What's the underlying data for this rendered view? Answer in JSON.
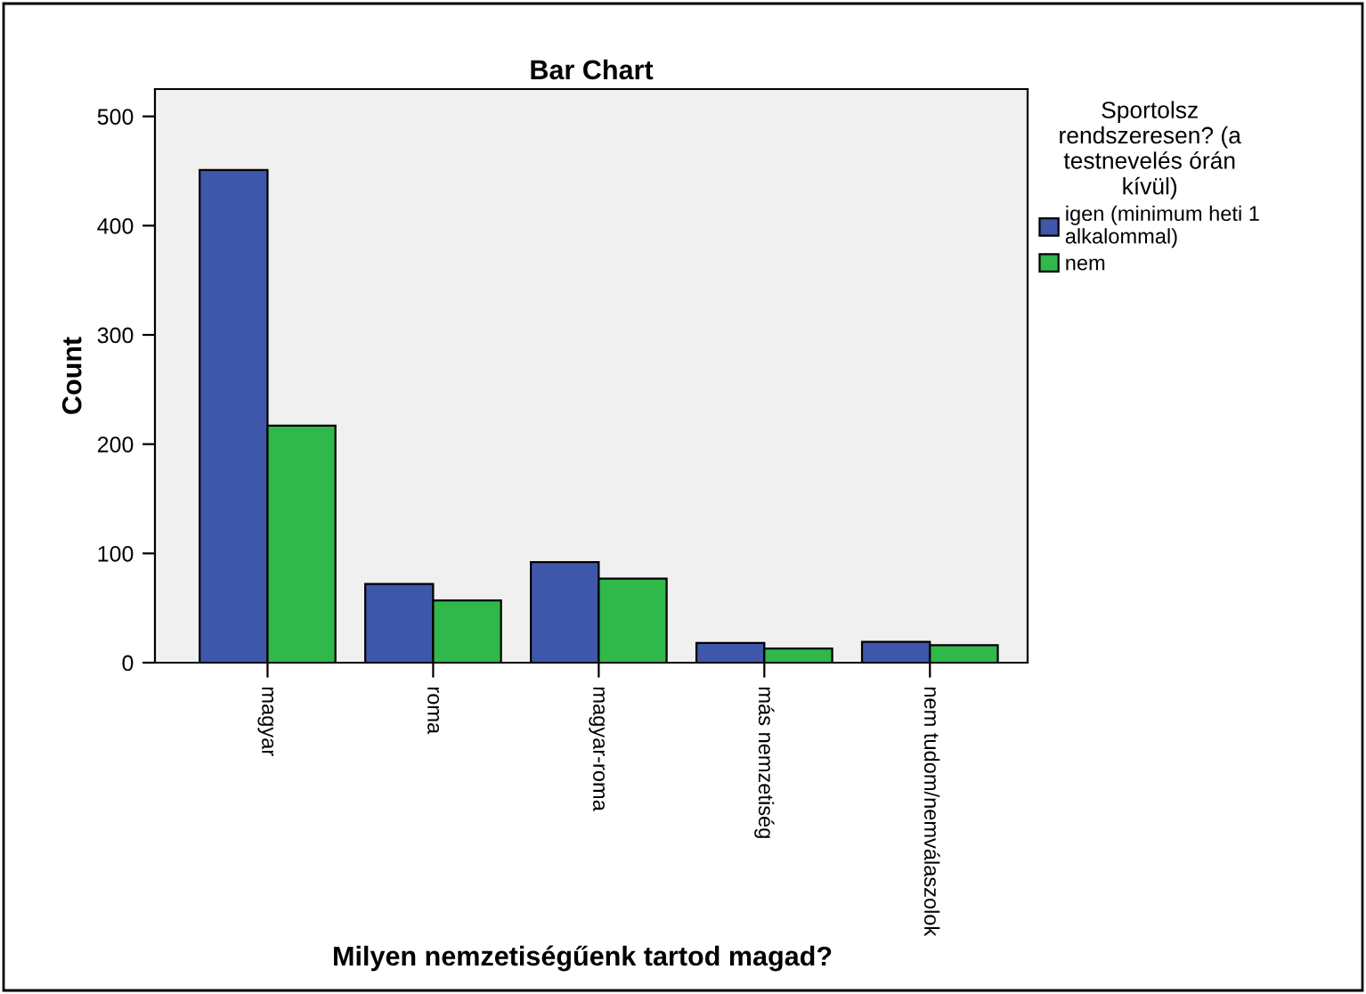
{
  "chart_data": {
    "type": "bar",
    "title": "Bar Chart",
    "xlabel": "Milyen nemzetiségűenk tartod magad?",
    "ylabel": "Count",
    "legend_title": "Sportolsz rendszeresen? (a testnevelés órán kívül)",
    "categories": [
      "magyar",
      "roma",
      "magyar-roma",
      "más nemzetiség",
      "nem tudom/nemválaszolok"
    ],
    "series": [
      {
        "name": "igen (minimum heti 1 alkalommal)",
        "color": "#3f57ab",
        "values": [
          451,
          72,
          92,
          18,
          19
        ]
      },
      {
        "name": "nem",
        "color": "#30b84a",
        "values": [
          217,
          57,
          77,
          13,
          16
        ]
      }
    ],
    "ylim": [
      0,
      525
    ],
    "yticks": [
      0,
      100,
      200,
      300,
      400,
      500
    ],
    "grid": false,
    "legend": "right"
  }
}
